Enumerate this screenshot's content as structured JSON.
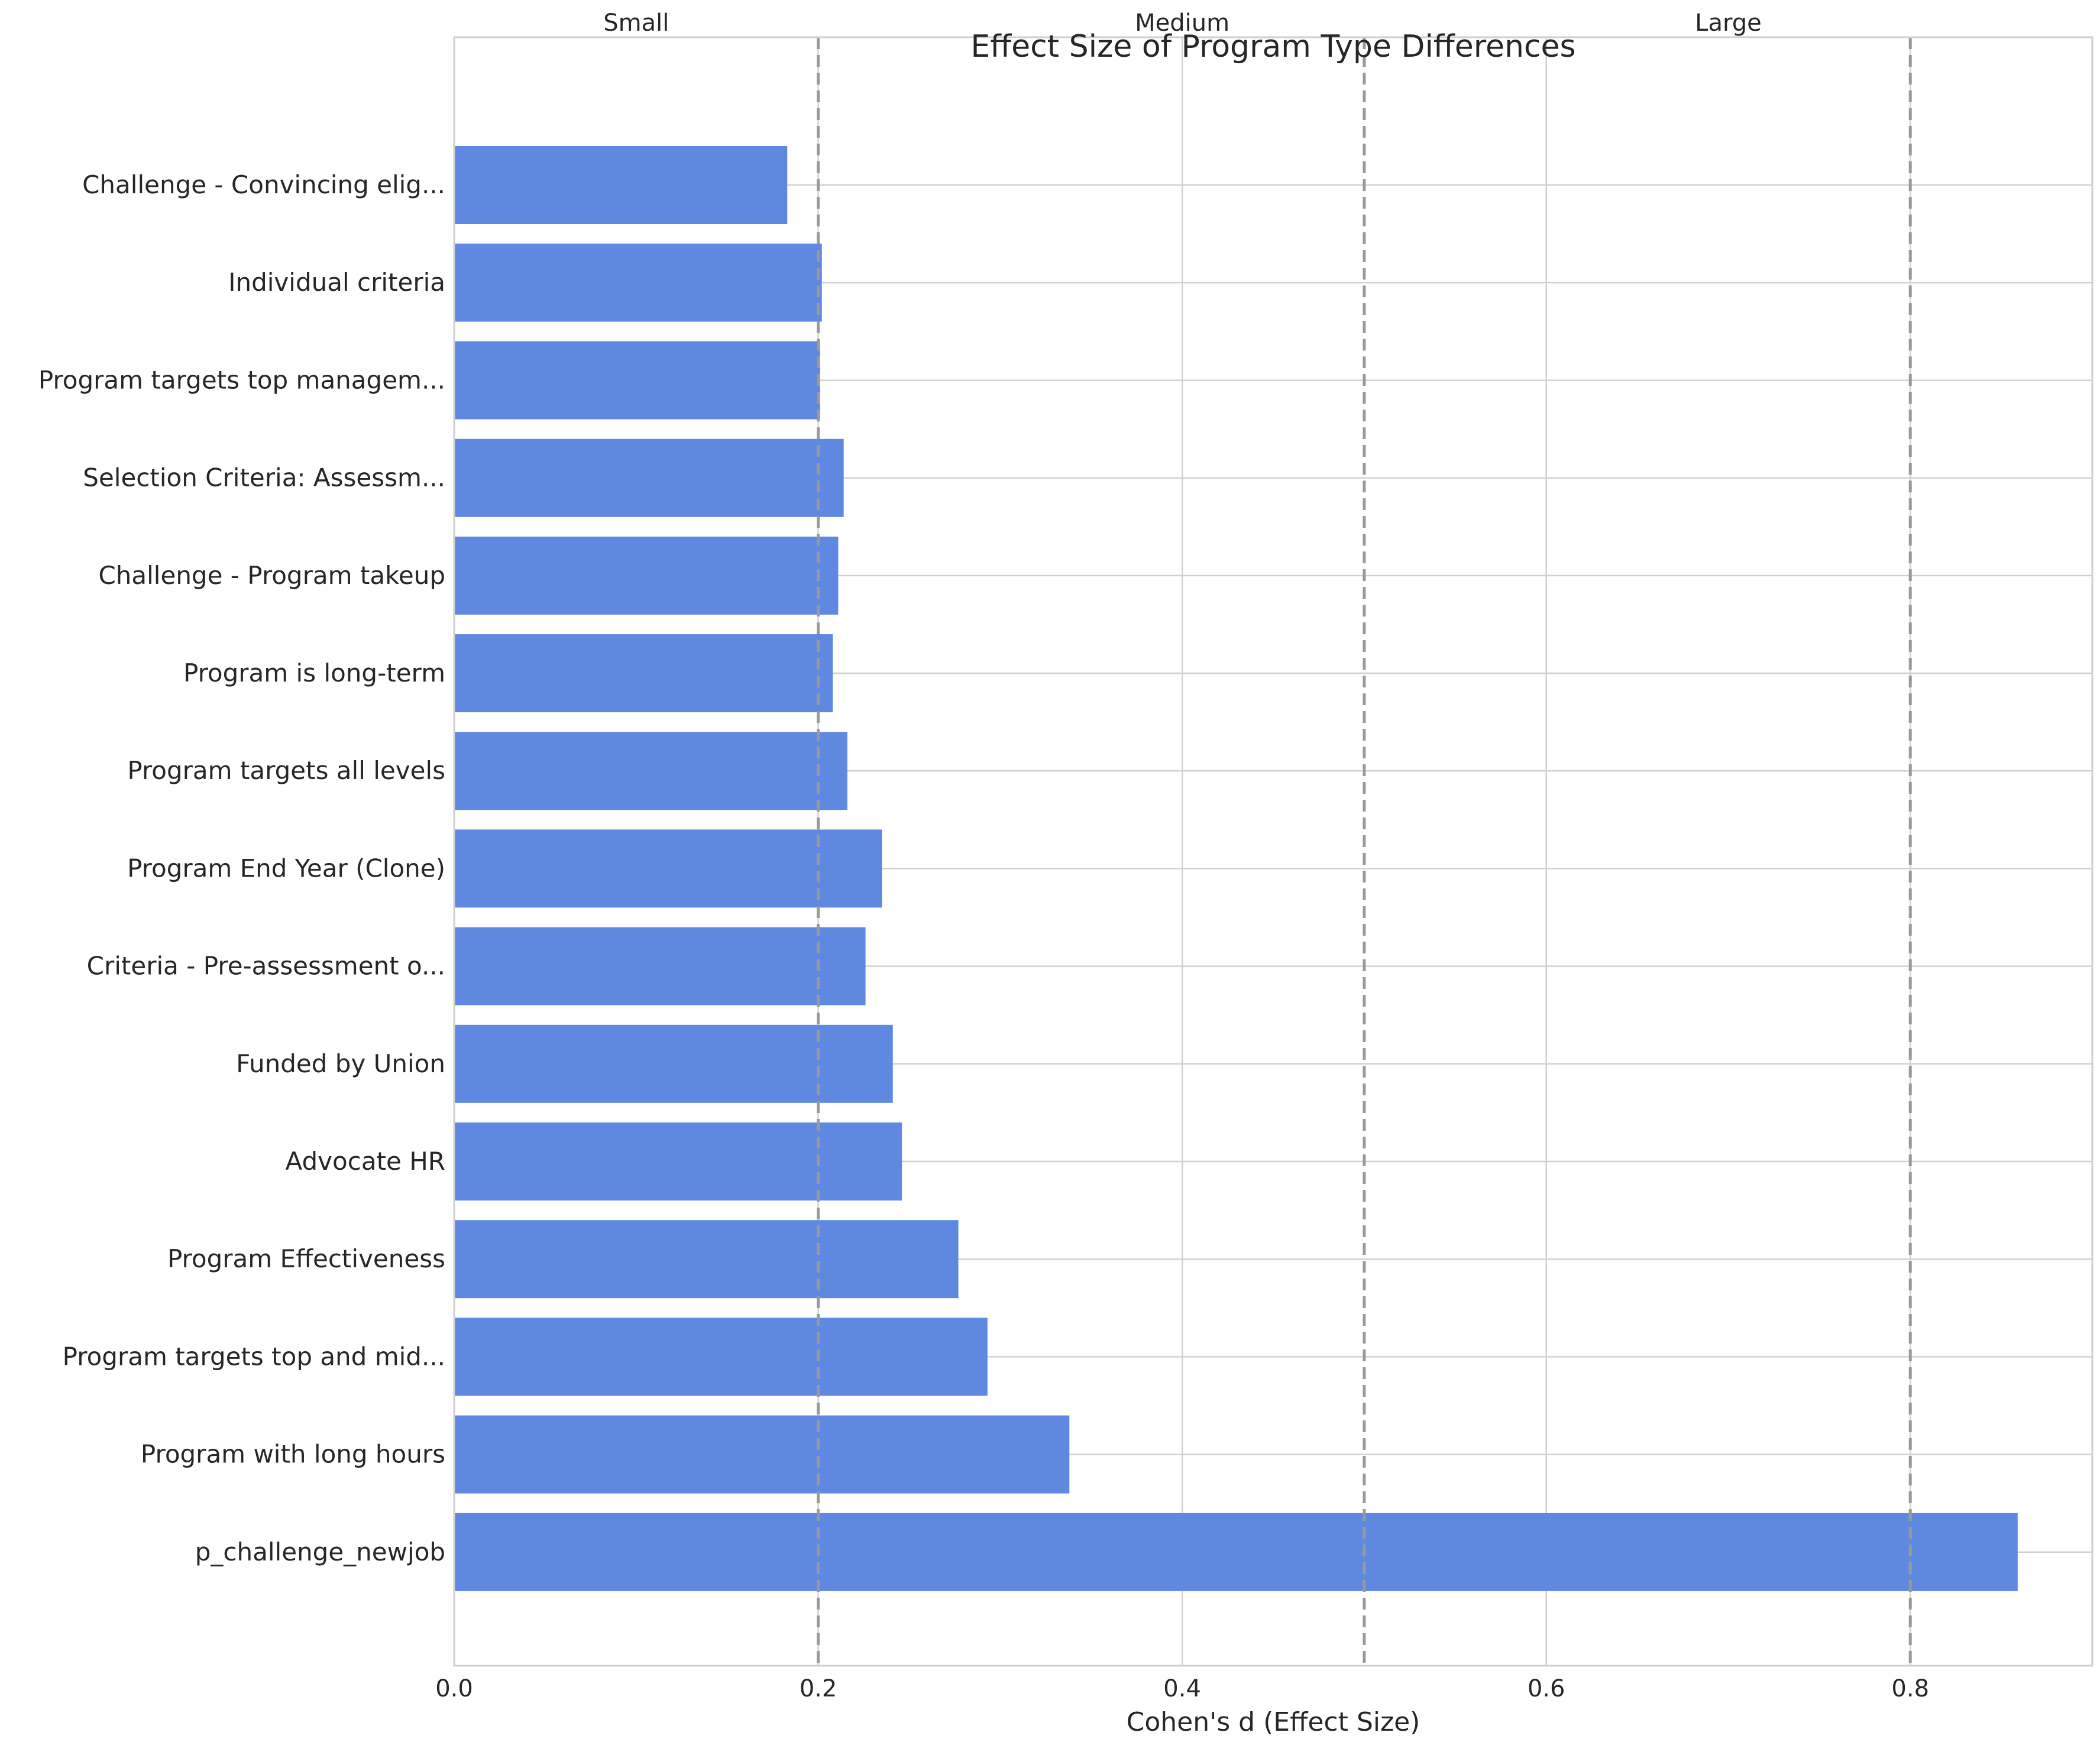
{
  "chart_data": {
    "type": "bar",
    "orientation": "horizontal",
    "title": "Effect Size of Program Type Differences",
    "xlabel": "Cohen's d (Effect Size)",
    "ylabel": "",
    "xlim": [
      0,
      0.9
    ],
    "xticks": [
      0.0,
      0.2,
      0.4,
      0.6,
      0.8
    ],
    "xtick_labels": [
      "0.0",
      "0.2",
      "0.4",
      "0.6",
      "0.8"
    ],
    "grid": true,
    "bar_color": "#5f89e0",
    "categories": [
      "Challenge - Convincing elig...",
      "Individual criteria",
      "Program targets top managem...",
      "Selection Criteria: Assessm...",
      "Challenge - Program takeup",
      "Program is long-term",
      "Program targets all levels",
      "Program End Year (Clone)",
      "Criteria - Pre-assessment o...",
      "Funded by Union",
      "Advocate HR",
      "Program Effectiveness",
      "Program targets top and mid...",
      "Program with long hours",
      "p_challenge_newjob"
    ],
    "values": [
      0.183,
      0.202,
      0.201,
      0.214,
      0.211,
      0.208,
      0.216,
      0.235,
      0.226,
      0.241,
      0.246,
      0.277,
      0.293,
      0.338,
      0.859
    ],
    "thresholds": [
      {
        "label": "Small",
        "value": 0.2
      },
      {
        "label": "Medium",
        "value": 0.5
      },
      {
        "label": "Large",
        "value": 0.8
      }
    ],
    "threshold_color": "#999999"
  }
}
